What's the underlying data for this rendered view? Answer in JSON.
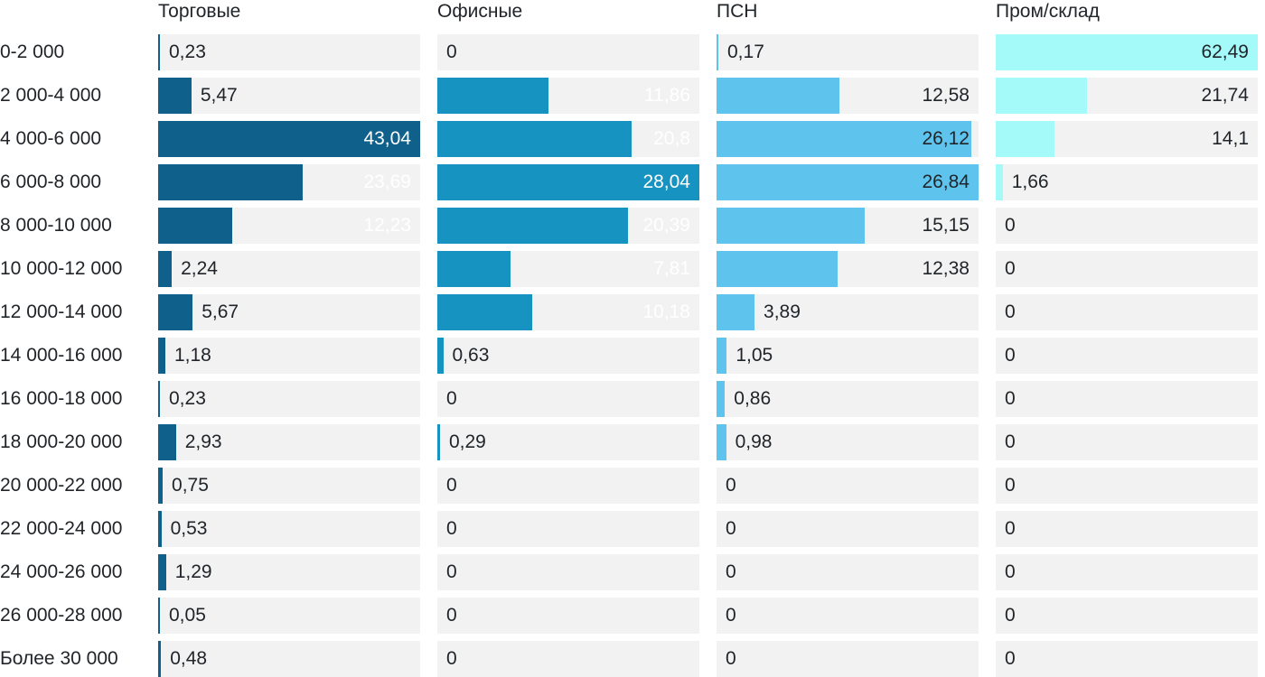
{
  "chart_data": {
    "type": "bar",
    "orientation": "horizontal",
    "title": "",
    "xlabel": "",
    "ylabel": "",
    "grid": false,
    "scaling": "each column normalized to its own max value",
    "track_color": "#f2f2f2",
    "text_color": "#212529",
    "categories": [
      "0-2 000",
      "2 000-4 000",
      "4 000-6 000",
      "6 000-8 000",
      "8 000-10 000",
      "10 000-12 000",
      "12 000-14 000",
      "14 000-16 000",
      "16 000-18 000",
      "18 000-20 000",
      "20 000-22 000",
      "22 000-24 000",
      "24 000-26 000",
      "26 000-28 000",
      "Более 30 000"
    ],
    "series": [
      {
        "name": "Торговые",
        "color": "#0f618c",
        "inside_label_color": "#ffffff",
        "values": [
          0.23,
          5.47,
          43.04,
          23.69,
          12.23,
          2.24,
          5.67,
          1.18,
          0.23,
          2.93,
          0.75,
          0.53,
          1.29,
          0.05,
          0.48
        ],
        "labels": [
          "0,23",
          "5,47",
          "43,04",
          "23,69",
          "12,23",
          "2,24",
          "5,67",
          "1,18",
          "0,23",
          "2,93",
          "0,75",
          "0,53",
          "1,29",
          "0,05",
          "0,48"
        ]
      },
      {
        "name": "Офисные",
        "color": "#1793c1",
        "inside_label_color": "#ffffff",
        "values": [
          0,
          11.86,
          20.8,
          28.04,
          20.39,
          7.81,
          10.18,
          0.63,
          0,
          0.29,
          0,
          0,
          0,
          0,
          0
        ],
        "labels": [
          "0",
          "11,86",
          "20,8",
          "28,04",
          "20,39",
          "7,81",
          "10,18",
          "0,63",
          "0",
          "0,29",
          "0",
          "0",
          "0",
          "0",
          "0"
        ]
      },
      {
        "name": "ПСН",
        "color": "#5ec4ee",
        "inside_label_color": "#212529",
        "values": [
          0.17,
          12.58,
          26.12,
          26.84,
          15.15,
          12.38,
          3.89,
          1.05,
          0.86,
          0.98,
          0,
          0,
          0,
          0,
          0
        ],
        "labels": [
          "0,17",
          "12,58",
          "26,12",
          "26,84",
          "15,15",
          "12,38",
          "3,89",
          "1,05",
          "0,86",
          "0,98",
          "0",
          "0",
          "0",
          "0",
          "0"
        ]
      },
      {
        "name": "Пром/склад",
        "color": "#a4faf8",
        "inside_label_color": "#212529",
        "values": [
          62.49,
          21.74,
          14.1,
          1.66,
          0,
          0,
          0,
          0,
          0,
          0,
          0,
          0,
          0,
          0,
          0
        ],
        "labels": [
          "62,49",
          "21,74",
          "14,1",
          "1,66",
          "0",
          "0",
          "0",
          "0",
          "0",
          "0",
          "0",
          "0",
          "0",
          "0",
          "0"
        ]
      }
    ]
  }
}
